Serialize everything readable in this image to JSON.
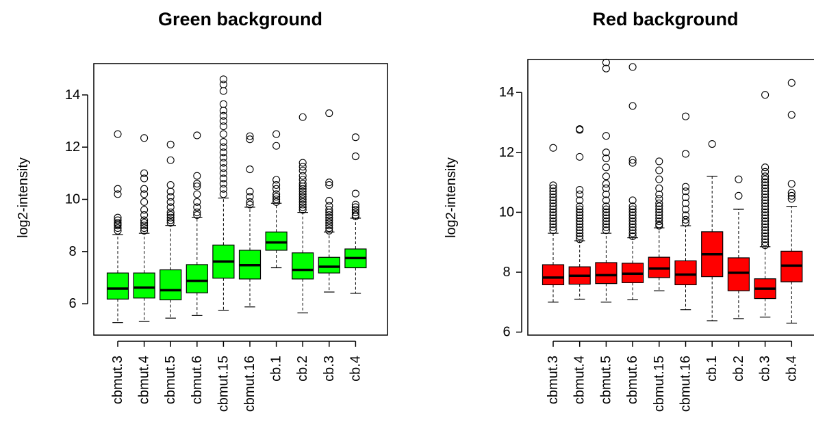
{
  "chart_data": [
    {
      "type": "boxplot",
      "title": "Green background",
      "ylabel": "log2-intensity",
      "ylim": [
        4.8,
        15.2
      ],
      "yticks": [
        6,
        8,
        10,
        12,
        14
      ],
      "ytick_labels": [
        "6",
        "8",
        "10",
        "12",
        "14"
      ],
      "fill": "#00ff00",
      "categories": [
        "cbmut.3",
        "cbmut.4",
        "cbmut.5",
        "cbmut.6",
        "cbmut.15",
        "cbmut.16",
        "cb.1",
        "cb.2",
        "cb.3",
        "cb.4"
      ],
      "boxes": [
        {
          "min": 5.28,
          "q1": 6.18,
          "median": 6.58,
          "q3": 7.18,
          "max": 8.65,
          "outliers": [
            8.8,
            8.9,
            9.0,
            9.05,
            9.1,
            9.2,
            9.3,
            10.2,
            10.4,
            12.5
          ]
        },
        {
          "min": 5.32,
          "q1": 6.22,
          "median": 6.62,
          "q3": 7.18,
          "max": 8.7,
          "outliers": [
            8.8,
            8.9,
            9.0,
            9.1,
            9.2,
            9.4,
            9.6,
            9.9,
            10.2,
            10.4,
            10.8,
            11.0,
            12.35
          ]
        },
        {
          "min": 5.45,
          "q1": 6.15,
          "median": 6.52,
          "q3": 7.3,
          "max": 9.0,
          "outliers": [
            9.1,
            9.2,
            9.3,
            9.4,
            9.5,
            9.7,
            9.9,
            10.1,
            10.3,
            10.55,
            11.5,
            12.1
          ]
        },
        {
          "min": 5.55,
          "q1": 6.42,
          "median": 6.88,
          "q3": 7.5,
          "max": 9.3,
          "outliers": [
            9.4,
            9.5,
            9.7,
            9.9,
            10.2,
            10.5,
            10.6,
            10.9,
            12.45
          ]
        },
        {
          "min": 5.75,
          "q1": 6.98,
          "median": 7.62,
          "q3": 8.25,
          "max": 10.05,
          "outliers": [
            10.2,
            10.4,
            10.6,
            10.8,
            11.0,
            11.2,
            11.4,
            11.6,
            11.8,
            12.0,
            12.2,
            12.5,
            12.8,
            13.0,
            13.2,
            13.4,
            13.65,
            14.15,
            14.4,
            14.6
          ]
        },
        {
          "min": 5.88,
          "q1": 6.95,
          "median": 7.48,
          "q3": 8.05,
          "max": 9.7,
          "outliers": [
            9.8,
            9.9,
            10.1,
            10.3,
            11.15,
            12.3,
            12.42
          ]
        },
        {
          "min": 7.38,
          "q1": 8.05,
          "median": 8.35,
          "q3": 8.75,
          "max": 9.85,
          "outliers": [
            9.9,
            10.0,
            10.1,
            10.2,
            10.4,
            10.55,
            10.75,
            12.05,
            12.5
          ]
        },
        {
          "min": 5.65,
          "q1": 6.95,
          "median": 7.3,
          "q3": 7.95,
          "max": 9.5,
          "outliers": [
            9.6,
            9.7,
            9.8,
            9.9,
            10.0,
            10.1,
            10.2,
            10.3,
            10.4,
            10.5,
            10.6,
            10.75,
            10.9,
            11.1,
            11.25,
            11.4,
            13.15
          ]
        },
        {
          "min": 6.45,
          "q1": 7.18,
          "median": 7.42,
          "q3": 7.78,
          "max": 8.75,
          "outliers": [
            8.8,
            8.9,
            9.0,
            9.1,
            9.2,
            9.3,
            9.4,
            9.5,
            9.6,
            9.75,
            9.95,
            10.55,
            10.65,
            13.3
          ]
        },
        {
          "min": 6.4,
          "q1": 7.38,
          "median": 7.75,
          "q3": 8.1,
          "max": 9.28,
          "outliers": [
            9.35,
            9.4,
            9.5,
            9.6,
            9.7,
            9.8,
            10.22,
            11.65,
            12.38
          ]
        }
      ]
    },
    {
      "type": "boxplot",
      "title": "Red background",
      "ylabel": "log2-intensity",
      "ylim": [
        5.9,
        15.1
      ],
      "yticks": [
        6,
        8,
        10,
        12,
        14
      ],
      "ytick_labels": [
        "6",
        "8",
        "10",
        "12",
        "14"
      ],
      "fill": "#ff0000",
      "categories": [
        "cbmut.3",
        "cbmut.4",
        "cbmut.5",
        "cbmut.6",
        "cbmut.15",
        "cbmut.16",
        "cb.1",
        "cb.2",
        "cb.3",
        "cb.4"
      ],
      "boxes": [
        {
          "min": 7.0,
          "q1": 7.58,
          "median": 7.82,
          "q3": 8.25,
          "max": 9.3,
          "outliers": [
            9.4,
            9.5,
            9.6,
            9.7,
            9.8,
            9.9,
            10.0,
            10.1,
            10.2,
            10.3,
            10.4,
            10.5,
            10.6,
            10.7,
            10.8,
            10.9,
            12.15
          ]
        },
        {
          "min": 7.1,
          "q1": 7.6,
          "median": 7.88,
          "q3": 8.18,
          "max": 9.05,
          "outliers": [
            9.1,
            9.2,
            9.3,
            9.4,
            9.5,
            9.6,
            9.7,
            9.8,
            9.9,
            10.0,
            10.1,
            10.2,
            10.4,
            10.6,
            10.75,
            11.85,
            12.75,
            12.78
          ]
        },
        {
          "min": 7.0,
          "q1": 7.62,
          "median": 7.9,
          "q3": 8.32,
          "max": 9.3,
          "outliers": [
            9.4,
            9.5,
            9.6,
            9.7,
            9.8,
            9.9,
            10.0,
            10.1,
            10.2,
            10.4,
            10.6,
            10.8,
            10.95,
            11.2,
            11.5,
            11.8,
            12.0,
            12.55,
            14.8,
            15.0
          ]
        },
        {
          "min": 7.08,
          "q1": 7.65,
          "median": 7.95,
          "q3": 8.3,
          "max": 9.15,
          "outliers": [
            9.2,
            9.3,
            9.4,
            9.5,
            9.6,
            9.7,
            9.8,
            9.9,
            10.0,
            10.1,
            10.2,
            10.4,
            11.65,
            11.75,
            13.55,
            14.85
          ]
        },
        {
          "min": 7.38,
          "q1": 7.82,
          "median": 8.12,
          "q3": 8.5,
          "max": 9.48,
          "outliers": [
            9.55,
            9.6,
            9.7,
            9.8,
            9.9,
            10.0,
            10.1,
            10.2,
            10.3,
            10.45,
            10.6,
            10.8,
            11.1,
            11.4,
            11.7
          ]
        },
        {
          "min": 6.75,
          "q1": 7.58,
          "median": 7.92,
          "q3": 8.38,
          "max": 9.55,
          "outliers": [
            9.65,
            9.75,
            9.9,
            10.1,
            10.3,
            10.5,
            10.7,
            10.85,
            11.95,
            13.2
          ]
        },
        {
          "min": 6.38,
          "q1": 7.85,
          "median": 8.6,
          "q3": 9.35,
          "max": 11.2,
          "outliers": [
            12.28
          ]
        },
        {
          "min": 6.45,
          "q1": 7.38,
          "median": 7.98,
          "q3": 8.48,
          "max": 10.1,
          "outliers": [
            10.55,
            11.1
          ]
        },
        {
          "min": 6.5,
          "q1": 7.12,
          "median": 7.45,
          "q3": 7.78,
          "max": 8.85,
          "outliers": [
            8.9,
            9.0,
            9.1,
            9.2,
            9.3,
            9.4,
            9.5,
            9.6,
            9.7,
            9.8,
            9.9,
            10.0,
            10.1,
            10.2,
            10.3,
            10.4,
            10.5,
            10.6,
            10.7,
            10.8,
            10.9,
            11.0,
            11.1,
            11.2,
            11.35,
            11.5,
            13.92
          ]
        },
        {
          "min": 6.3,
          "q1": 7.68,
          "median": 8.22,
          "q3": 8.7,
          "max": 10.2,
          "outliers": [
            10.45,
            10.55,
            10.65,
            10.95,
            13.25,
            14.32
          ]
        }
      ]
    }
  ]
}
